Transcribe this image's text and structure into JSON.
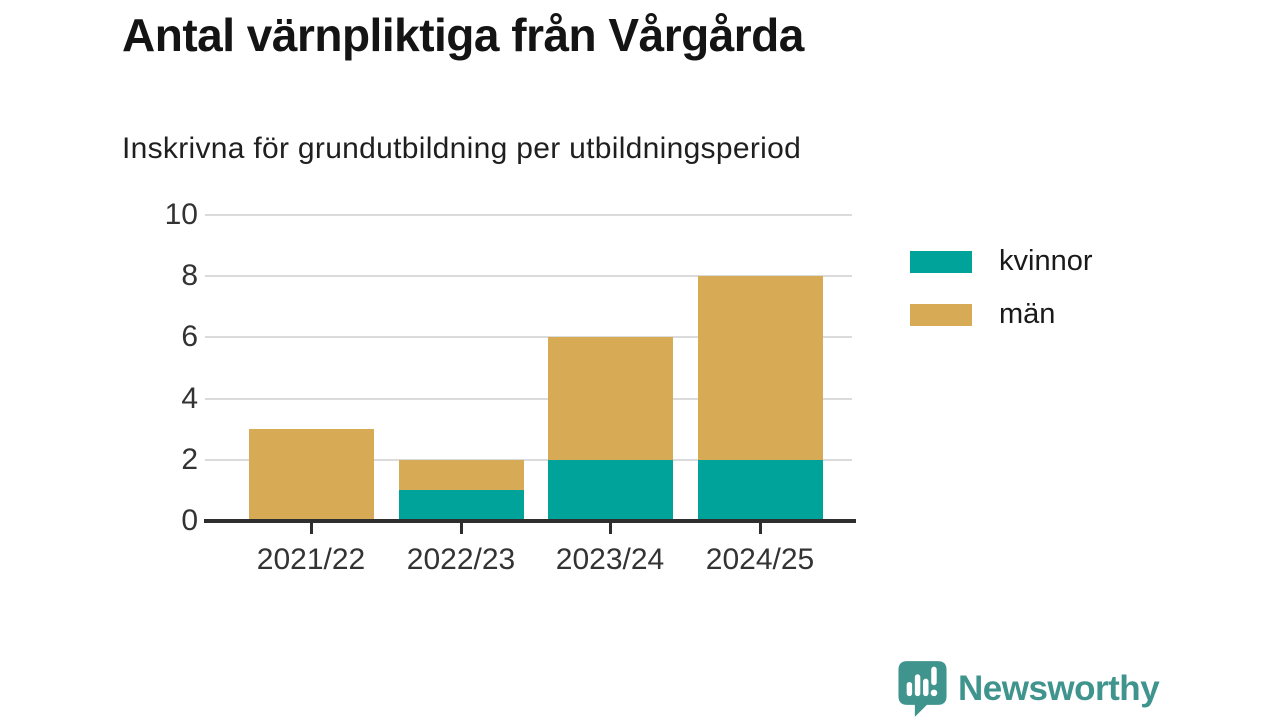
{
  "title": "Antal värnpliktiga från Vårgårda",
  "subtitle": "Inskrivna för grundutbildning per utbildningsperiod",
  "chart_data": {
    "type": "bar",
    "stacked": true,
    "title": "Antal värnpliktiga från Vårgårda",
    "subtitle": "Inskrivna för grundutbildning per utbildningsperiod",
    "categories": [
      "2021/22",
      "2022/23",
      "2023/24",
      "2024/25"
    ],
    "series": [
      {
        "name": "kvinnor",
        "color": "#00a39a",
        "values": [
          0,
          1,
          2,
          2
        ]
      },
      {
        "name": "män",
        "color": "#d7aa55",
        "values": [
          3,
          1,
          4,
          6
        ]
      }
    ],
    "totals": [
      3,
      2,
      6,
      8
    ],
    "xlabel": "",
    "ylabel": "",
    "ylim": [
      0,
      10
    ],
    "yticks": [
      0,
      2,
      4,
      6,
      8,
      10
    ],
    "grid": true,
    "legend_position": "right"
  },
  "branding": {
    "logo_text": "Newsworthy",
    "logo_icon": "bar-chart-speech-bubble-icon",
    "logo_color": "#3f948d"
  }
}
